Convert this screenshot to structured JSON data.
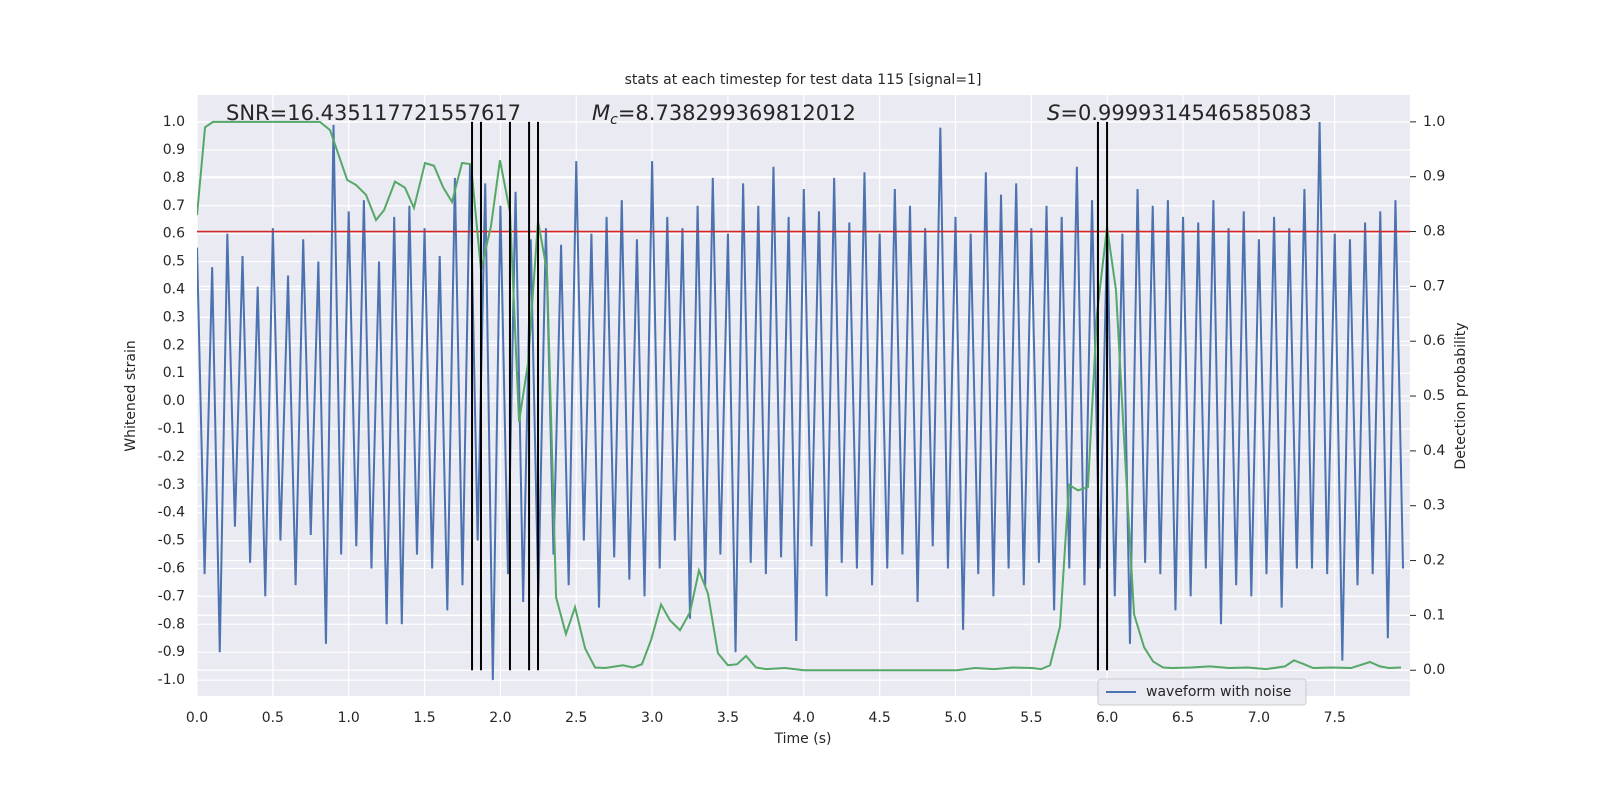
{
  "chart_data": {
    "type": "line",
    "title": "stats at each timestep for test data 115 [signal=1]",
    "xlabel": "Time (s)",
    "ylabel": "Whitened strain",
    "y2label": "Detection probability",
    "background": "#eaeaf2",
    "grid": true,
    "legend": "lower right",
    "xlim": [
      0,
      7.996
    ],
    "ylim": [
      -1.057,
      1.097
    ],
    "y2lim": [
      -0.047,
      1.049
    ],
    "xticks": [
      {
        "value": 0,
        "label": "0.0"
      },
      0.5,
      {
        "value": 1,
        "label": "1.0"
      },
      1.5,
      {
        "value": 2,
        "label": "2.0"
      },
      2.5,
      {
        "value": 3,
        "label": "3.0"
      },
      3.5,
      {
        "value": 4,
        "label": "4.0"
      },
      4.5,
      {
        "value": 5,
        "label": "5.0"
      },
      5.5,
      {
        "value": 6,
        "label": "6.0"
      },
      6.5,
      {
        "value": 7,
        "label": "7.0"
      },
      7.5
    ],
    "yticks": [
      {
        "value": -1,
        "label": "-1.0"
      },
      -0.9,
      -0.8,
      -0.7,
      -0.6,
      -0.5,
      -0.4,
      -0.3,
      -0.2,
      -0.1,
      {
        "value": 0,
        "label": "0.0"
      },
      0.1,
      0.2,
      0.3,
      0.4,
      0.5,
      0.6,
      0.7,
      0.8,
      0.9,
      {
        "value": 1,
        "label": "1.0"
      }
    ],
    "y2ticks": [
      {
        "value": 0,
        "label": "0.0"
      },
      0.1,
      0.2,
      0.3,
      0.4,
      0.5,
      0.6,
      0.7,
      0.8,
      0.9,
      {
        "value": 1,
        "label": "1.0"
      }
    ],
    "annotations": [
      {
        "text": "SNR=16.435117721557617"
      },
      {
        "symbol": "M",
        "subscript": "c",
        "text": "=8.738299369812012"
      },
      {
        "symbol": "S",
        "text": "=0.9999314546585083"
      }
    ],
    "series": [
      {
        "name": "waveform with noise",
        "color": "#4c72b0",
        "x": [
          0,
          0.05,
          0.1,
          0.15,
          0.2,
          0.25,
          0.3,
          0.35,
          0.4,
          0.45,
          0.5,
          0.55,
          0.6,
          0.65,
          0.7,
          0.75,
          0.8,
          0.85,
          0.9,
          0.95,
          1,
          1.05,
          1.1,
          1.15,
          1.2,
          1.25,
          1.3,
          1.35,
          1.4,
          1.45,
          1.5,
          1.55,
          1.6,
          1.65,
          1.7,
          1.75,
          1.8,
          1.85,
          1.9,
          1.95,
          2,
          2.05,
          2.1,
          2.15,
          2.2,
          2.25,
          2.3,
          2.35,
          2.4,
          2.45,
          2.5,
          2.55,
          2.6,
          2.65,
          2.7,
          2.75,
          2.8,
          2.85,
          2.9,
          2.95,
          3,
          3.05,
          3.1,
          3.15,
          3.2,
          3.25,
          3.3,
          3.35,
          3.4,
          3.45,
          3.5,
          3.55,
          3.6,
          3.65,
          3.7,
          3.75,
          3.8,
          3.85,
          3.9,
          3.95,
          4,
          4.05,
          4.1,
          4.15,
          4.2,
          4.25,
          4.3,
          4.35,
          4.4,
          4.45,
          4.5,
          4.55,
          4.6,
          4.65,
          4.7,
          4.75,
          4.8,
          4.85,
          4.9,
          4.95,
          5,
          5.05,
          5.1,
          5.15,
          5.2,
          5.25,
          5.3,
          5.35,
          5.4,
          5.45,
          5.5,
          5.55,
          5.6,
          5.65,
          5.7,
          5.75,
          5.8,
          5.85,
          5.9,
          5.95,
          6,
          6.05,
          6.1,
          6.15,
          6.2,
          6.25,
          6.3,
          6.35,
          6.4,
          6.45,
          6.5,
          6.55,
          6.6,
          6.65,
          6.7,
          6.75,
          6.8,
          6.85,
          6.9,
          6.95,
          7,
          7.05,
          7.1,
          7.15,
          7.2,
          7.25,
          7.3,
          7.35,
          7.4,
          7.45,
          7.5,
          7.55,
          7.6,
          7.65,
          7.7,
          7.75,
          7.8,
          7.85,
          7.9,
          7.95
        ],
        "values": [
          0.55,
          -0.62,
          0.48,
          -0.9,
          0.6,
          -0.45,
          0.52,
          -0.58,
          0.41,
          -0.7,
          0.62,
          -0.5,
          0.45,
          -0.66,
          0.58,
          -0.48,
          0.5,
          -0.87,
          0.99,
          -0.55,
          0.68,
          -0.52,
          0.72,
          -0.6,
          0.5,
          -0.8,
          0.66,
          -0.8,
          0.7,
          -0.55,
          0.62,
          -0.6,
          0.52,
          -0.75,
          0.8,
          -0.66,
          0.85,
          -0.5,
          0.78,
          -1.0,
          0.7,
          -0.62,
          0.75,
          -0.72,
          0.58,
          -0.7,
          0.62,
          -0.55,
          0.56,
          -0.66,
          0.86,
          -0.5,
          0.6,
          -0.74,
          0.66,
          -0.56,
          0.72,
          -0.64,
          0.58,
          -0.7,
          0.86,
          -0.6,
          0.66,
          -0.5,
          0.62,
          -0.78,
          0.7,
          -0.66,
          0.8,
          -0.55,
          0.6,
          -0.9,
          0.78,
          -0.58,
          0.7,
          -0.62,
          0.84,
          -0.56,
          0.66,
          -0.86,
          0.76,
          -0.52,
          0.68,
          -0.7,
          0.8,
          -0.58,
          0.64,
          -0.6,
          0.82,
          -0.66,
          0.6,
          -0.6,
          0.76,
          -0.55,
          0.7,
          -0.72,
          0.62,
          -0.52,
          0.98,
          -0.6,
          0.66,
          -0.82,
          0.6,
          -0.62,
          0.82,
          -0.7,
          0.74,
          -0.6,
          0.78,
          -0.66,
          0.62,
          -0.58,
          0.7,
          -0.75,
          0.66,
          -0.6,
          0.84,
          -0.66,
          0.72,
          -0.6,
          0.62,
          -0.7,
          0.6,
          -0.87,
          0.76,
          -0.58,
          0.7,
          -0.62,
          0.72,
          -0.75,
          0.66,
          -0.7,
          0.64,
          -0.6,
          0.72,
          -0.8,
          0.62,
          -0.66,
          0.68,
          -0.7,
          0.58,
          -0.62,
          0.66,
          -0.74,
          0.62,
          -0.6,
          0.76,
          -0.6,
          1.0,
          -0.62,
          0.6,
          -0.93,
          0.58,
          -0.66,
          0.64,
          -0.62,
          0.68,
          -0.85,
          0.72,
          -0.6
        ]
      }
    ],
    "detection": {
      "color": "#55a868",
      "axis": "y2",
      "x": [
        0,
        0.053,
        0.105,
        0.81,
        0.877,
        0.99,
        1.048,
        1.114,
        1.18,
        1.233,
        1.305,
        1.371,
        1.43,
        1.503,
        1.562,
        1.622,
        1.681,
        1.747,
        1.806,
        1.872,
        1.938,
        1.997,
        2.063,
        2.123,
        2.182,
        2.248,
        2.307,
        2.367,
        2.432,
        2.492,
        2.558,
        2.624,
        2.69,
        2.808,
        2.874,
        2.933,
        2.993,
        3.059,
        3.118,
        3.184,
        3.25,
        3.309,
        3.368,
        3.434,
        3.5,
        3.56,
        3.619,
        3.685,
        3.751,
        3.876,
        4.001,
        5.01,
        5.129,
        5.254,
        5.379,
        5.504,
        5.564,
        5.623,
        5.689,
        5.748,
        5.808,
        5.873,
        5.933,
        5.999,
        6.058,
        6.117,
        6.177,
        6.243,
        6.302,
        6.368,
        6.427,
        6.552,
        6.678,
        6.803,
        6.928,
        7.047,
        7.172,
        7.231,
        7.297,
        7.357,
        7.482,
        7.607,
        7.732,
        7.798,
        7.857,
        7.937
      ],
      "values": [
        0.83,
        0.99,
        1.0,
        1.0,
        0.985,
        0.894,
        0.885,
        0.867,
        0.821,
        0.839,
        0.891,
        0.88,
        0.843,
        0.925,
        0.92,
        0.881,
        0.854,
        0.925,
        0.923,
        0.73,
        0.81,
        0.93,
        0.836,
        0.453,
        0.56,
        0.819,
        0.728,
        0.133,
        0.066,
        0.115,
        0.04,
        0.005,
        0.004,
        0.009,
        0.005,
        0.011,
        0.055,
        0.12,
        0.091,
        0.073,
        0.106,
        0.182,
        0.14,
        0.031,
        0.009,
        0.011,
        0.026,
        0.005,
        0.002,
        0.004,
        0.0,
        0.0,
        0.004,
        0.002,
        0.005,
        0.004,
        0.002,
        0.009,
        0.08,
        0.338,
        0.328,
        0.334,
        0.651,
        0.808,
        0.693,
        0.392,
        0.102,
        0.042,
        0.016,
        0.005,
        0.004,
        0.005,
        0.007,
        0.004,
        0.005,
        0.002,
        0.007,
        0.018,
        0.011,
        0.004,
        0.005,
        0.004,
        0.015,
        0.007,
        0.004,
        0.005
      ]
    },
    "threshold": {
      "value": 0.8,
      "axis": "y2",
      "color": "#d62728"
    },
    "vlines": {
      "x": [
        1.813,
        1.872,
        2.063,
        2.189,
        2.248,
        5.939,
        5.999
      ],
      "ymin": 0,
      "ymax": 1,
      "axis": "y2",
      "color": "#000000"
    }
  }
}
